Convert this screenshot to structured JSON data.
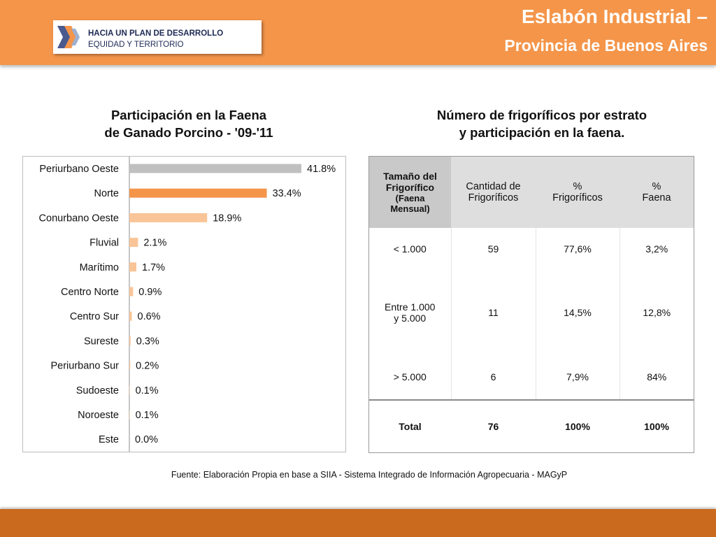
{
  "header": {
    "logo_line1": "HACIA UN PLAN DE DESARROLLO",
    "logo_line2": "EQUIDAD Y TERRITORIO",
    "title_line1": "Eslabón Industrial –",
    "title_line2": "Provincia de Buenos Aires",
    "color": "#f4954a"
  },
  "chart_data": {
    "type": "bar",
    "orientation": "horizontal",
    "title_line1": "Participación en la Faena",
    "title_line2": "de Ganado Porcino - '09-'11",
    "categories": [
      "Periurbano Oeste",
      "Norte",
      "Conurbano Oeste",
      "Fluvial",
      "Marítimo",
      "Centro Norte",
      "Centro Sur",
      "Sureste",
      "Periurbano Sur",
      "Sudoeste",
      "Noroeste",
      "Este"
    ],
    "values": [
      41.8,
      33.4,
      18.9,
      2.1,
      1.7,
      0.9,
      0.6,
      0.3,
      0.2,
      0.1,
      0.1,
      0.0
    ],
    "value_labels": [
      "41.8%",
      "33.4%",
      "18.9%",
      "2.1%",
      "1.7%",
      "0.9%",
      "0.6%",
      "0.3%",
      "0.2%",
      "0.1%",
      "0.1%",
      "0.0%"
    ],
    "bar_colors": [
      "#c0c0c0",
      "#f4954a",
      "#f9c497",
      "#f9c497",
      "#f9c497",
      "#f9c497",
      "#f9c497",
      "#f9c497",
      "#f9c497",
      "#f9c497",
      "#f9c497",
      "#f9c497"
    ],
    "xlim": [
      0,
      45
    ],
    "grid": false,
    "legend": false
  },
  "table": {
    "title_line1": "Número de frigoríficos por estrato",
    "title_line2": "y participación en la faena.",
    "headers": {
      "c0_line1": "Tamaño del",
      "c0_line2": "Frigorífico",
      "c0_line3": "(Faena",
      "c0_line4": "Mensual)",
      "c1_line1": "Cantidad de",
      "c1_line2": "Frigoríficos",
      "c2_line1": "%",
      "c2_line2": "Frigoríficos",
      "c3_line1": "%",
      "c3_line2": "Faena"
    },
    "rows": [
      {
        "size_line1": "< 1.000",
        "size_line2": "",
        "count": "59",
        "pct_plants": "77,6%",
        "pct_slaughter": "3,2%"
      },
      {
        "size_line1": "Entre 1.000",
        "size_line2": "y 5.000",
        "count": "11",
        "pct_plants": "14,5%",
        "pct_slaughter": "12,8%"
      },
      {
        "size_line1": "> 5.000",
        "size_line2": "",
        "count": "6",
        "pct_plants": "7,9%",
        "pct_slaughter": "84%"
      }
    ],
    "total": {
      "label": "Total",
      "count": "76",
      "pct_plants": "100%",
      "pct_slaughter": "100%"
    }
  },
  "source": "Fuente: Elaboración Propia en base a SIIA - Sistema Integrado de Información Agropecuaria - MAGyP",
  "footer": {
    "color": "#c96a1e"
  }
}
